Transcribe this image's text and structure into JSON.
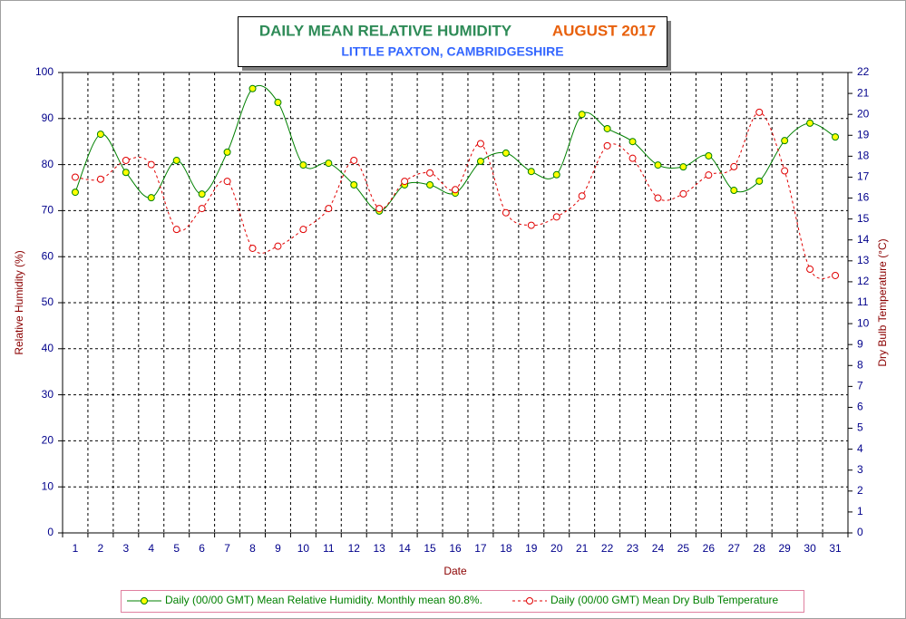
{
  "chart_data": {
    "type": "line",
    "title": "DAILY MEAN RELATIVE HUMIDITY",
    "title_period": "AUGUST 2017",
    "subtitle": "LITTLE PAXTON, CAMBRIDGESHIRE",
    "x_label": "Date",
    "y_label": "Relative Humidity (%)",
    "y2_label": "Dry Bulb Temperature (°C)",
    "categories": [
      1,
      2,
      3,
      4,
      5,
      6,
      7,
      8,
      9,
      10,
      11,
      12,
      13,
      14,
      15,
      16,
      17,
      18,
      19,
      20,
      21,
      22,
      23,
      24,
      25,
      26,
      27,
      28,
      29,
      30,
      31
    ],
    "ylim": [
      0,
      100
    ],
    "yticks": [
      0,
      10,
      20,
      30,
      40,
      50,
      60,
      70,
      80,
      90,
      100
    ],
    "y2lim": [
      0,
      22
    ],
    "y2ticks": [
      0,
      1,
      2,
      3,
      4,
      5,
      6,
      7,
      8,
      9,
      10,
      11,
      12,
      13,
      14,
      15,
      16,
      17,
      18,
      19,
      20,
      21,
      22
    ],
    "grid": true,
    "series": [
      {
        "name": "Daily (00/00 GMT) Mean Relative Humidity. Monthly mean 80.8%.",
        "color": "#008000",
        "marker_fill": "#ffff00",
        "dashed": false,
        "values": [
          74.0,
          86.6,
          78.3,
          72.8,
          80.9,
          73.6,
          82.7,
          96.5,
          93.5,
          79.9,
          80.3,
          75.6,
          69.9,
          75.6,
          75.6,
          73.8,
          80.7,
          82.5,
          78.5,
          77.8,
          90.9,
          87.8,
          85.0,
          79.9,
          79.5,
          81.9,
          74.4,
          76.4,
          85.2,
          89.0,
          86.0
        ]
      },
      {
        "name": "Daily (00/00 GMT) Mean Dry Bulb Temperature",
        "color": "#e00000",
        "marker_fill": "#ffffff",
        "dashed": true,
        "axis": "y2",
        "values": [
          17.0,
          16.9,
          17.8,
          17.6,
          14.5,
          15.5,
          16.8,
          13.6,
          13.7,
          14.5,
          15.5,
          17.8,
          15.5,
          16.8,
          17.2,
          16.4,
          18.6,
          15.3,
          14.7,
          15.1,
          16.1,
          18.5,
          17.9,
          16.0,
          16.2,
          17.1,
          17.5,
          20.1,
          17.3,
          12.6,
          12.3
        ]
      }
    ]
  }
}
